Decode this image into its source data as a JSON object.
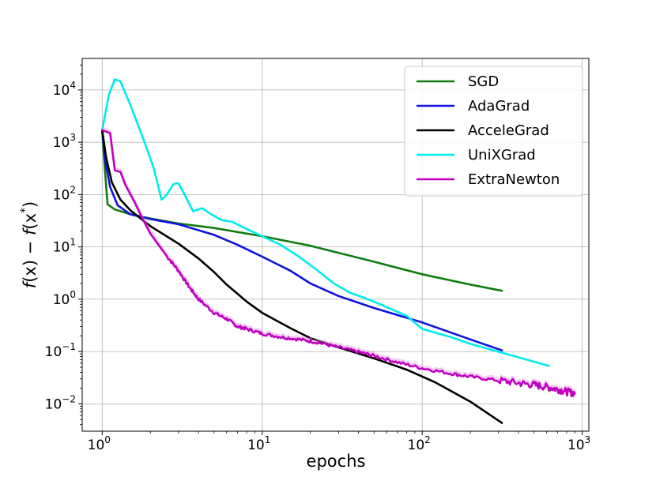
{
  "chart_data": {
    "type": "line",
    "xlabel": "epochs",
    "ylabel_parts": {
      "f1": "f",
      "x1": "(x) − ",
      "f2": "f",
      "x2": "(x",
      "star": "*",
      "close": ")"
    },
    "xscale": "log",
    "yscale": "log",
    "xlim": [
      0.75,
      1100
    ],
    "ylim": [
      0.003,
      40000
    ],
    "grid": true,
    "legend_position": "upper right",
    "x_ticks": [
      {
        "value": 1,
        "base": "10",
        "exp": "0"
      },
      {
        "value": 10,
        "base": "10",
        "exp": "1"
      },
      {
        "value": 100,
        "base": "10",
        "exp": "2"
      },
      {
        "value": 1000,
        "base": "10",
        "exp": "3"
      }
    ],
    "y_ticks": [
      {
        "value": 0.01,
        "base": "10",
        "exp": "−2"
      },
      {
        "value": 0.1,
        "base": "10",
        "exp": "−1"
      },
      {
        "value": 1,
        "base": "10",
        "exp": "0"
      },
      {
        "value": 10,
        "base": "10",
        "exp": "1"
      },
      {
        "value": 100,
        "base": "10",
        "exp": "2"
      },
      {
        "value": 1000,
        "base": "10",
        "exp": "3"
      },
      {
        "value": 10000,
        "base": "10",
        "exp": "4"
      }
    ],
    "series": [
      {
        "name": "SGD",
        "color": "#107c10",
        "points": [
          [
            1.0,
            1700
          ],
          [
            1.04,
            300
          ],
          [
            1.08,
            65
          ],
          [
            1.2,
            52
          ],
          [
            1.5,
            42
          ],
          [
            2,
            35
          ],
          [
            3,
            28
          ],
          [
            5,
            23
          ],
          [
            10,
            16
          ],
          [
            20,
            10.5
          ],
          [
            50,
            5.2
          ],
          [
            100,
            3.0
          ],
          [
            200,
            1.9
          ],
          [
            315,
            1.45
          ]
        ]
      },
      {
        "name": "AdaGrad",
        "color": "#1010e0",
        "points": [
          [
            1.0,
            1700
          ],
          [
            1.05,
            400
          ],
          [
            1.12,
            140
          ],
          [
            1.25,
            62
          ],
          [
            1.5,
            42
          ],
          [
            2,
            34
          ],
          [
            3,
            27
          ],
          [
            5,
            17
          ],
          [
            7,
            11
          ],
          [
            10,
            6.5
          ],
          [
            15,
            3.5
          ],
          [
            20,
            2.0
          ],
          [
            30,
            1.15
          ],
          [
            50,
            0.68
          ],
          [
            100,
            0.36
          ],
          [
            200,
            0.17
          ],
          [
            315,
            0.105
          ]
        ]
      },
      {
        "name": "AcceleGrad",
        "color": "#000000",
        "points": [
          [
            1.0,
            1700
          ],
          [
            1.06,
            500
          ],
          [
            1.15,
            170
          ],
          [
            1.3,
            80
          ],
          [
            1.5,
            50
          ],
          [
            2,
            25
          ],
          [
            3,
            11.5
          ],
          [
            4,
            6.0
          ],
          [
            5,
            3.3
          ],
          [
            6,
            1.9
          ],
          [
            8,
            0.9
          ],
          [
            10,
            0.55
          ],
          [
            15,
            0.28
          ],
          [
            20,
            0.18
          ],
          [
            30,
            0.12
          ],
          [
            50,
            0.074
          ],
          [
            80,
            0.045
          ],
          [
            120,
            0.026
          ],
          [
            200,
            0.011
          ],
          [
            315,
            0.0043
          ]
        ]
      },
      {
        "name": "UniXGrad",
        "color": "#00ecec",
        "points": [
          [
            1.0,
            1700
          ],
          [
            1.1,
            8000
          ],
          [
            1.2,
            16000
          ],
          [
            1.3,
            14500
          ],
          [
            1.5,
            5200
          ],
          [
            1.8,
            1200
          ],
          [
            2.1,
            320
          ],
          [
            2.35,
            80
          ],
          [
            2.5,
            95
          ],
          [
            2.8,
            160
          ],
          [
            3.0,
            165
          ],
          [
            3.3,
            95
          ],
          [
            3.7,
            48
          ],
          [
            4.2,
            55
          ],
          [
            4.8,
            42
          ],
          [
            5.5,
            33
          ],
          [
            6.5,
            30
          ],
          [
            8,
            22
          ],
          [
            10,
            16
          ],
          [
            13,
            11
          ],
          [
            17,
            6.5
          ],
          [
            22,
            3.6
          ],
          [
            28,
            2.0
          ],
          [
            35,
            1.35
          ],
          [
            50,
            0.9
          ],
          [
            80,
            0.48
          ],
          [
            100,
            0.27
          ],
          [
            150,
            0.19
          ],
          [
            200,
            0.14
          ],
          [
            315,
            0.095
          ],
          [
            450,
            0.07
          ],
          [
            620,
            0.053
          ]
        ]
      },
      {
        "name": "ExtraNewton",
        "color": "#c000c0",
        "points": [
          [
            1.0,
            1700
          ],
          [
            1.12,
            1500
          ],
          [
            1.2,
            290
          ],
          [
            1.3,
            270
          ],
          [
            1.4,
            150
          ],
          [
            1.6,
            70
          ],
          [
            1.8,
            33
          ],
          [
            2,
            18
          ],
          [
            2.5,
            7
          ],
          [
            3,
            3.5
          ],
          [
            3.5,
            1.7
          ],
          [
            4,
            1.0
          ],
          [
            5,
            0.55
          ],
          [
            6,
            0.42
          ],
          [
            7,
            0.3
          ],
          [
            8,
            0.27
          ],
          [
            10,
            0.22
          ],
          [
            13,
            0.19
          ],
          [
            17,
            0.17
          ],
          [
            22,
            0.15
          ],
          [
            30,
            0.12
          ],
          [
            40,
            0.098
          ],
          [
            50,
            0.083
          ],
          [
            70,
            0.062
          ],
          [
            100,
            0.048
          ],
          [
            150,
            0.038
          ],
          [
            200,
            0.033
          ],
          [
            300,
            0.028
          ],
          [
            400,
            0.025
          ],
          [
            500,
            0.023
          ],
          [
            600,
            0.021
          ],
          [
            700,
            0.019
          ],
          [
            800,
            0.017
          ],
          [
            900,
            0.016
          ]
        ]
      }
    ]
  }
}
